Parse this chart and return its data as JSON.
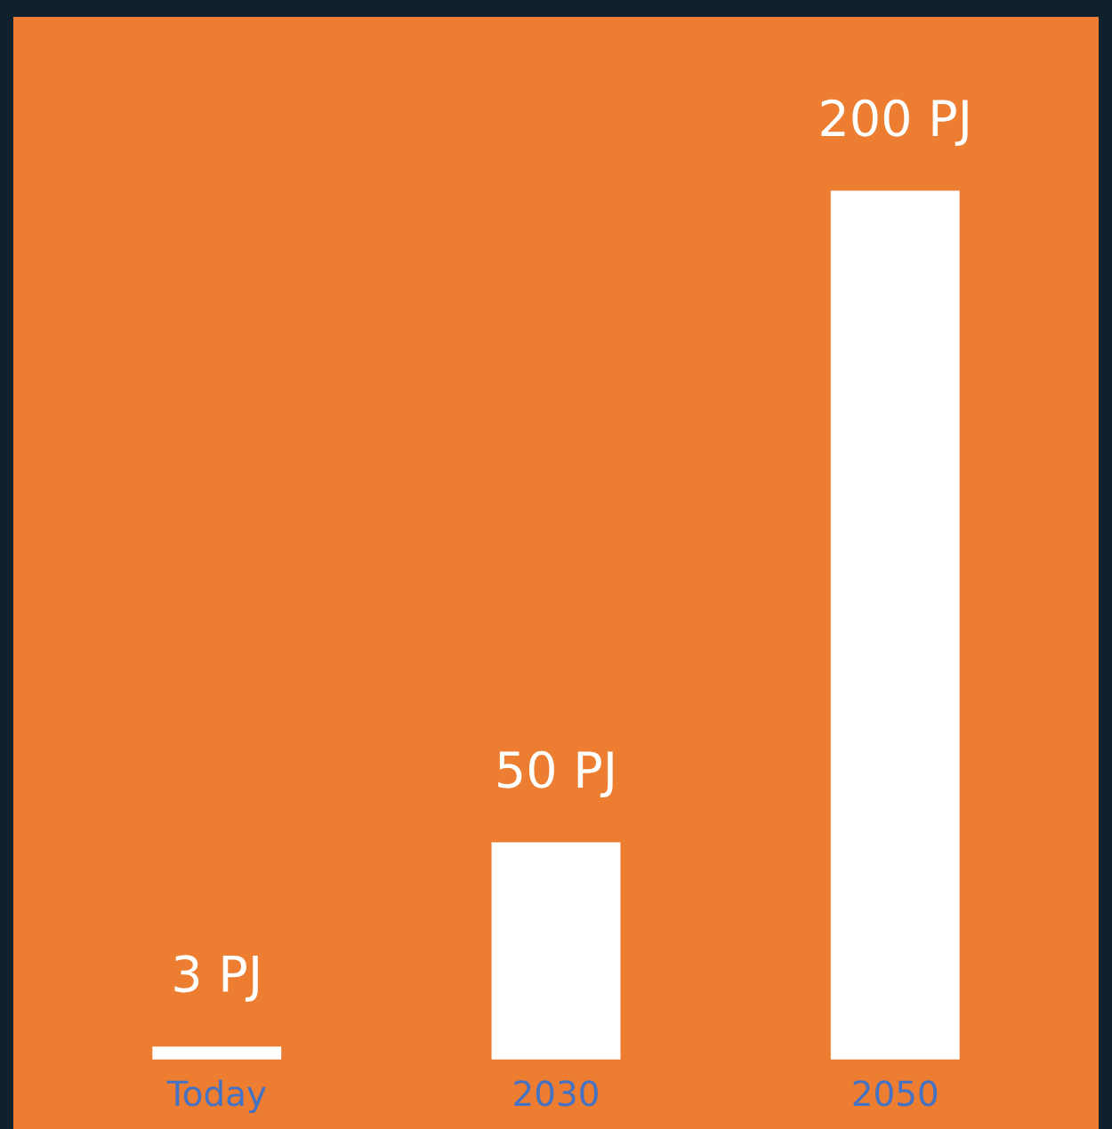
{
  "chart_data": {
    "type": "bar",
    "categories": [
      "Today",
      "2030",
      "2050"
    ],
    "values": [
      3,
      50,
      200
    ],
    "value_labels": [
      "3 PJ",
      "50 PJ",
      "200 PJ"
    ],
    "color": "#ffffff",
    "grid": false,
    "legend": false
  }
}
